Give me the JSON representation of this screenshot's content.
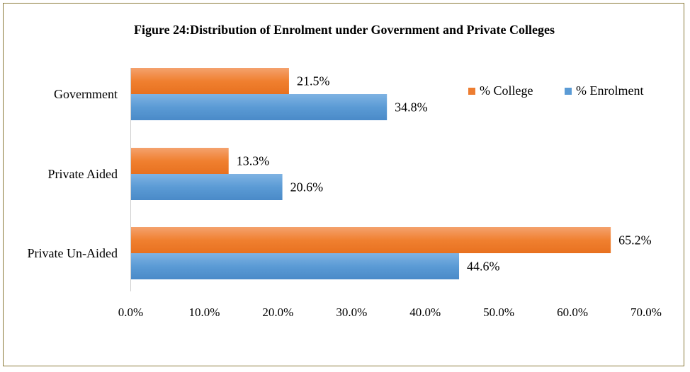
{
  "chart_data": {
    "type": "bar",
    "orientation": "horizontal",
    "title": "Figure 24:Distribution of Enrolment under Government and Private Colleges",
    "categories": [
      "Government",
      "Private Aided",
      "Private Un-Aided"
    ],
    "series": [
      {
        "name": "% College",
        "values": [
          21.5,
          13.3,
          65.2
        ],
        "labels": [
          "21.5%",
          "13.3%",
          "65.2%"
        ],
        "color": "#ED7D31"
      },
      {
        "name": "% Enrolment",
        "values": [
          34.8,
          20.6,
          44.6
        ],
        "labels": [
          "34.8%",
          "20.6%",
          "44.6%"
        ],
        "color": "#5B9BD5"
      }
    ],
    "xlim": [
      0,
      70
    ],
    "xticks": [
      "0.0%",
      "10.0%",
      "20.0%",
      "30.0%",
      "40.0%",
      "50.0%",
      "60.0%",
      "70.0%"
    ],
    "grid": false,
    "legend_position": "top-right"
  }
}
